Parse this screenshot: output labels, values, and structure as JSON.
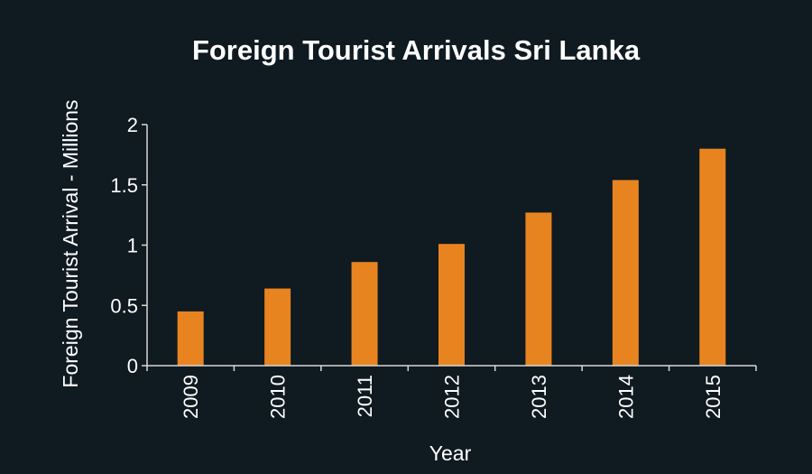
{
  "chart_data": {
    "type": "bar",
    "title": "Foreign Tourist Arrivals Sri Lanka",
    "xlabel": "Year",
    "ylabel": "Foreign Tourist Arrival - Millions",
    "categories": [
      "2009",
      "2010",
      "2011",
      "2012",
      "2013",
      "2014",
      "2015"
    ],
    "values": [
      0.45,
      0.64,
      0.86,
      1.01,
      1.27,
      1.54,
      1.8
    ],
    "ylim": [
      0,
      2
    ],
    "yticks": [
      "0",
      "0.5",
      "1",
      "1.5",
      "2"
    ],
    "ytick_values": [
      0,
      0.5,
      1,
      1.5,
      2
    ],
    "grid": false,
    "legend": "none",
    "bar_color": "#e8841f",
    "background_color": "#0f1a21",
    "text_color": "#ffffff"
  }
}
